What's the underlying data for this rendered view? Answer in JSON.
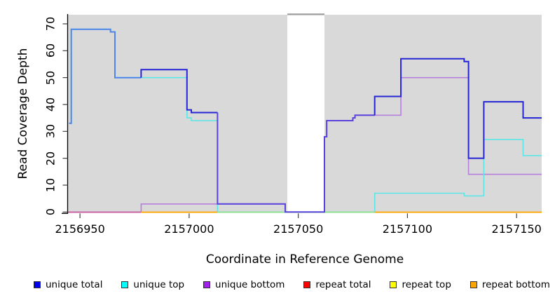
{
  "chart": {
    "y_axis_title": "Read Coverage Depth",
    "x_axis_title": "Coordinate in Reference Genome",
    "x_tick_labels": [
      "2156950",
      "2157000",
      "2157050",
      "2157100",
      "2157150"
    ],
    "y_tick_labels": [
      "0",
      "10",
      "20",
      "30",
      "40",
      "50",
      "60",
      "70"
    ]
  },
  "legend": {
    "items": [
      {
        "label": "unique total",
        "color": "#0000F0"
      },
      {
        "label": "unique top",
        "color": "#00FFFF"
      },
      {
        "label": "unique bottom",
        "color": "#A020F0"
      },
      {
        "label": "repeat total",
        "color": "#FF0000"
      },
      {
        "label": "repeat top",
        "color": "#FFFF00"
      },
      {
        "label": "repeat bottom",
        "color": "#FFA500"
      }
    ]
  },
  "colors": {
    "panel_background": "#D9D9D9",
    "masked_band": "#FFFFFF",
    "band_cap_line": "#9A9A9A",
    "line_total_pure": "#2525D6",
    "line_total_over_top": "#4C86EA",
    "line_total_over_bottom": "#5A43DC",
    "line_unique_top": "#5CE6E6",
    "line_unique_bottom": "#B67FDC",
    "baseline_repeat_total": "#C9609F",
    "baseline_repeat_bottom": "#FFA500",
    "baseline_top_over_repeat": "#8FE08F",
    "axis": "#000000"
  },
  "chart_data": {
    "type": "line",
    "subtype": "step-post-coverage",
    "title": "",
    "xlabel": "Coordinate in Reference Genome",
    "ylabel": "Read Coverage Depth",
    "x_range": [
      2156944.5,
      2157161.5
    ],
    "ylim": [
      0,
      73
    ],
    "x_tick_values": [
      2156950,
      2157000,
      2157050,
      2157100,
      2157150
    ],
    "y_tick_values": [
      0,
      10,
      20,
      30,
      40,
      50,
      60,
      70
    ],
    "grid": false,
    "legend_position": "bottom",
    "masked_region": [
      2157045,
      2157062
    ],
    "series": [
      {
        "name": "unique total",
        "color": "#0000F0",
        "points": [
          [
            2156945,
            33
          ],
          [
            2156946,
            68
          ],
          [
            2156964,
            67
          ],
          [
            2156966,
            50
          ],
          [
            2156978,
            53
          ],
          [
            2156999,
            38
          ],
          [
            2157001,
            37
          ],
          [
            2157013,
            3
          ],
          [
            2157044,
            0
          ],
          [
            2157062,
            28
          ],
          [
            2157063,
            34
          ],
          [
            2157075,
            35
          ],
          [
            2157076,
            36
          ],
          [
            2157085,
            43
          ],
          [
            2157097,
            57
          ],
          [
            2157126,
            56
          ],
          [
            2157128,
            20
          ],
          [
            2157135,
            41
          ],
          [
            2157153,
            35
          ]
        ]
      },
      {
        "name": "unique top",
        "color": "#00FFFF",
        "points": [
          [
            2156945,
            33
          ],
          [
            2156946,
            68
          ],
          [
            2156964,
            67
          ],
          [
            2156966,
            50
          ],
          [
            2156999,
            35
          ],
          [
            2157001,
            34
          ],
          [
            2157013,
            0
          ],
          [
            2157085,
            7
          ],
          [
            2157126,
            6
          ],
          [
            2157135,
            27
          ],
          [
            2157153,
            21
          ]
        ]
      },
      {
        "name": "unique bottom",
        "color": "#A020F0",
        "points": [
          [
            2156945,
            0
          ],
          [
            2156978,
            3
          ],
          [
            2157044,
            0
          ],
          [
            2157062,
            28
          ],
          [
            2157063,
            34
          ],
          [
            2157075,
            35
          ],
          [
            2157076,
            36
          ],
          [
            2157097,
            50
          ],
          [
            2157128,
            14
          ]
        ]
      },
      {
        "name": "repeat total",
        "color": "#FF0000",
        "points": [
          [
            2156945,
            0
          ]
        ]
      },
      {
        "name": "repeat top",
        "color": "#FFFF00",
        "points": [
          [
            2156945,
            0
          ]
        ]
      },
      {
        "name": "repeat bottom",
        "color": "#FFA500",
        "points": [
          [
            2156945,
            0
          ]
        ]
      }
    ],
    "baseline_visible_segments": [
      {
        "from": 2156944.5,
        "to": 2156978,
        "color_key": "baseline_repeat_total"
      },
      {
        "from": 2156978,
        "to": 2157013,
        "color_key": "baseline_repeat_bottom"
      },
      {
        "from": 2157013,
        "to": 2157085,
        "color_key": "baseline_top_over_repeat"
      },
      {
        "from": 2157085,
        "to": 2157161.5,
        "color_key": "baseline_repeat_bottom"
      }
    ]
  }
}
